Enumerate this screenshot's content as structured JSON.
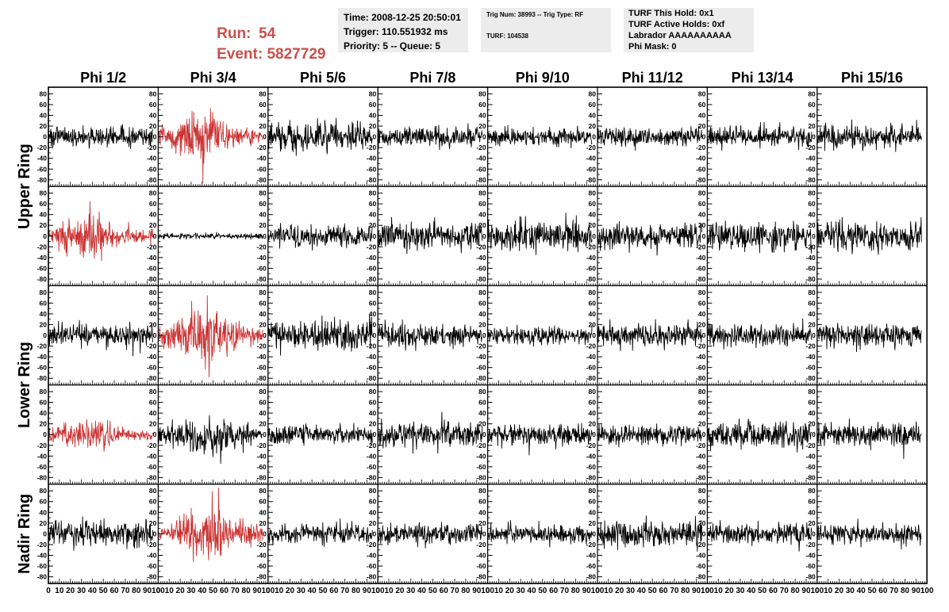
{
  "header": {
    "run_label": "Run:",
    "run_value": "54",
    "event_label": "Event:",
    "event_value": "5827729"
  },
  "info_box_1": {
    "time": "Time: 2008-12-25 20:50:01",
    "trigger": "Trigger: 110.551932 ms",
    "priority": "Priority: 5 -- Queue: 5"
  },
  "info_box_2": {
    "trig": "Trig Num: 38993 -- Trig Type: RF",
    "turf": "TURF: 104538"
  },
  "info_box_3": {
    "this_hold": "TURF This Hold: 0x1",
    "active_holds": "TURF Active Holds: 0xf",
    "labrador": "Labrador AAAAAAAAAA",
    "phi_mask": "Phi Mask: 0"
  },
  "colors": {
    "triggered": "#cc3333",
    "normal": "#000000"
  },
  "chart_data": {
    "type": "line",
    "columns": [
      "Phi 1/2",
      "Phi 3/4",
      "Phi 5/6",
      "Phi 7/8",
      "Phi 9/10",
      "Phi 11/12",
      "Phi 13/14",
      "Phi 15/16"
    ],
    "ring_labels": [
      "Upper Ring",
      "Lower Ring",
      "Nadir Ring"
    ],
    "row_ring_index": [
      0,
      0,
      1,
      1,
      2
    ],
    "xlim": [
      0,
      100
    ],
    "ylim": [
      -85,
      85
    ],
    "x_tick_labels": [
      "0",
      "10",
      "20",
      "30",
      "40",
      "50",
      "60",
      "70",
      "80",
      "90",
      "100"
    ],
    "y_ticks": [
      -80,
      -60,
      -40,
      -20,
      0,
      20,
      40,
      60,
      80
    ],
    "samples_per_trace": 260,
    "x_trace_end": 95,
    "grid": false,
    "panels": [
      [
        {
          "amp": 9,
          "color": "black",
          "seed": 101
        },
        {
          "amp": 20,
          "color": "red",
          "seed": 102,
          "env": "burst",
          "center": 38,
          "width": 22
        },
        {
          "amp": 13,
          "color": "black",
          "seed": 103
        },
        {
          "amp": 9,
          "color": "black",
          "seed": 104
        },
        {
          "amp": 8,
          "color": "black",
          "seed": 105
        },
        {
          "amp": 8,
          "color": "black",
          "seed": 106
        },
        {
          "amp": 9,
          "color": "black",
          "seed": 107
        },
        {
          "amp": 11,
          "color": "black",
          "seed": 108
        }
      ],
      [
        {
          "amp": 19,
          "color": "red",
          "seed": 201,
          "env": "burst",
          "center": 35,
          "width": 24
        },
        {
          "amp": 2.5,
          "color": "black",
          "seed": 202
        },
        {
          "amp": 10,
          "color": "black",
          "seed": 203
        },
        {
          "amp": 12,
          "color": "black",
          "seed": 204
        },
        {
          "amp": 12,
          "color": "black",
          "seed": 205
        },
        {
          "amp": 11,
          "color": "black",
          "seed": 206
        },
        {
          "amp": 12,
          "color": "black",
          "seed": 207
        },
        {
          "amp": 13,
          "color": "black",
          "seed": 208
        }
      ],
      [
        {
          "amp": 10,
          "color": "black",
          "seed": 301
        },
        {
          "amp": 22,
          "color": "red",
          "seed": 302,
          "env": "burst",
          "center": 42,
          "width": 26
        },
        {
          "amp": 13,
          "color": "black",
          "seed": 303
        },
        {
          "amp": 10,
          "color": "black",
          "seed": 304
        },
        {
          "amp": 8,
          "color": "black",
          "seed": 305
        },
        {
          "amp": 10,
          "color": "black",
          "seed": 306
        },
        {
          "amp": 10,
          "color": "black",
          "seed": 307
        },
        {
          "amp": 11,
          "color": "black",
          "seed": 308
        }
      ],
      [
        {
          "amp": 13,
          "color": "red",
          "seed": 401,
          "env": "burst",
          "center": 35,
          "width": 26
        },
        {
          "amp": 17,
          "color": "black",
          "seed": 402,
          "env": "burst",
          "center": 45,
          "width": 30
        },
        {
          "amp": 8,
          "color": "black",
          "seed": 403
        },
        {
          "amp": 12,
          "color": "black",
          "seed": 404
        },
        {
          "amp": 10,
          "color": "black",
          "seed": 405
        },
        {
          "amp": 9,
          "color": "black",
          "seed": 406
        },
        {
          "amp": 12,
          "color": "black",
          "seed": 407
        },
        {
          "amp": 10,
          "color": "black",
          "seed": 408
        }
      ],
      [
        {
          "amp": 12,
          "color": "black",
          "seed": 501
        },
        {
          "amp": 20,
          "color": "red",
          "seed": 502,
          "env": "burst",
          "center": 50,
          "width": 28
        },
        {
          "amp": 9,
          "color": "black",
          "seed": 503
        },
        {
          "amp": 9,
          "color": "black",
          "seed": 504
        },
        {
          "amp": 8,
          "color": "black",
          "seed": 505
        },
        {
          "amp": 12,
          "color": "black",
          "seed": 506
        },
        {
          "amp": 10,
          "color": "black",
          "seed": 507
        },
        {
          "amp": 10,
          "color": "black",
          "seed": 508
        }
      ]
    ]
  }
}
